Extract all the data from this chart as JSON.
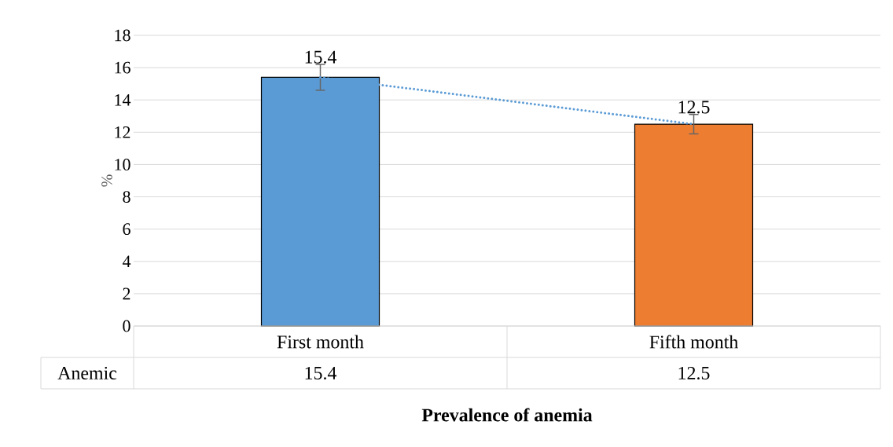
{
  "chart_data": {
    "type": "bar",
    "xlabel": "Prevalence of anemia",
    "ylabel": "%",
    "categories": [
      "First month",
      "Fifth month"
    ],
    "series": [
      {
        "name": "Anemic",
        "colors": [
          "#5b9bd5",
          "#ed7d31"
        ],
        "values": [
          15.4,
          12.5
        ],
        "errors": [
          0.8,
          0.6
        ],
        "value_labels": [
          "15.4",
          "12.5"
        ]
      },
      {
        "type": "line",
        "color": "#5b9bd5",
        "values": [
          15.4,
          12.5
        ],
        "line_style": "dotted",
        "marker": "none"
      }
    ],
    "ylim": [
      0,
      18
    ],
    "yticks": [
      0,
      2,
      4,
      6,
      8,
      10,
      12,
      14,
      16,
      18
    ],
    "grid": "y",
    "legend": false
  }
}
